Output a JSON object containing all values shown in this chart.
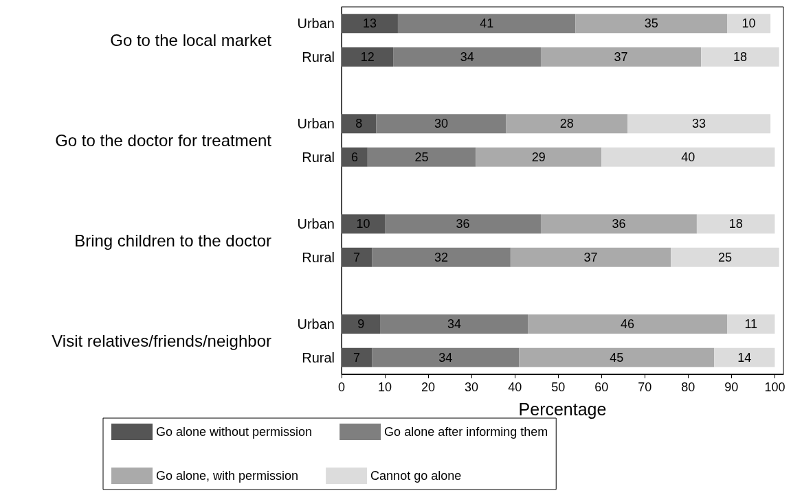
{
  "chart_data": {
    "type": "bar",
    "orientation": "horizontal",
    "stacked": true,
    "xlabel": "Percentage",
    "categories": [
      "Urban",
      "Rural",
      null,
      "Urban",
      "Rural",
      null,
      "Urban",
      "Rural",
      null,
      "Urban",
      "Rural"
    ],
    "annotations": [
      "Go to the local market",
      "Go to the doctor for treatment",
      "Bring children to the doctor",
      "Visit relatives/friends/neighbor"
    ],
    "series": [
      {
        "name": "Go alone without permission",
        "color": "#555555",
        "values": [
          13,
          12,
          null,
          8,
          6,
          null,
          10,
          7,
          null,
          9,
          7
        ]
      },
      {
        "name": "Go alone after informing them",
        "color": "#7f7f7f",
        "values": [
          41,
          34,
          null,
          30,
          25,
          null,
          36,
          32,
          null,
          34,
          34
        ]
      },
      {
        "name": "Go alone, with permission",
        "color": "#aaaaaa",
        "values": [
          35,
          37,
          null,
          28,
          29,
          null,
          36,
          37,
          null,
          46,
          45
        ]
      },
      {
        "name": "Cannot go alone",
        "color": "#dcdcdc",
        "values": [
          10,
          18,
          null,
          33,
          40,
          null,
          18,
          25,
          null,
          11,
          14
        ]
      }
    ],
    "xlim": [
      0,
      102
    ],
    "xticks": [
      0,
      10,
      20,
      30,
      40,
      50,
      60,
      70,
      80,
      90,
      100
    ],
    "data_labels": true,
    "grid": false,
    "legend": "bottom"
  }
}
